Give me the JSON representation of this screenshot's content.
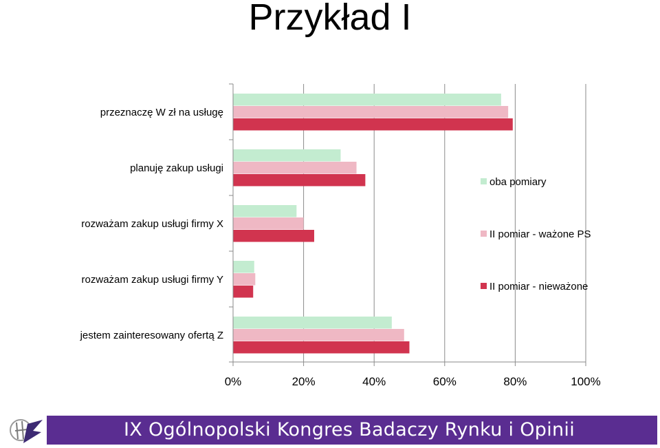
{
  "slide": {
    "title": "Przykład I"
  },
  "chart_data": {
    "type": "bar",
    "orientation": "horizontal",
    "categories": [
      "przeznaczę W zł na usługę",
      "planuję zakup usługi",
      "rozważam zakup usługi firmy X",
      "rozważam zakup usługi firmy Y",
      "jestem zainteresowany ofertą Z"
    ],
    "series": [
      {
        "name": "oba pomiary",
        "values": [
          76,
          30.5,
          18,
          6,
          45
        ],
        "color": "#c3ecd0"
      },
      {
        "name": "II pomiar - ważone PS",
        "values": [
          78,
          35,
          20,
          6.3,
          48.5
        ],
        "color": "#efb8c4"
      },
      {
        "name": "II pomiar - nieważone",
        "values": [
          79.3,
          37.5,
          23,
          5.7,
          50
        ],
        "color": "#d1344f"
      }
    ],
    "xlim": [
      0,
      100
    ],
    "xticks": [
      "0%",
      "20%",
      "40%",
      "60%",
      "80%",
      "100%"
    ],
    "grid": true,
    "legend": "right"
  },
  "footer": {
    "text": "IX Ogólnopolski Kongres Badaczy Rynku i Opinii"
  }
}
